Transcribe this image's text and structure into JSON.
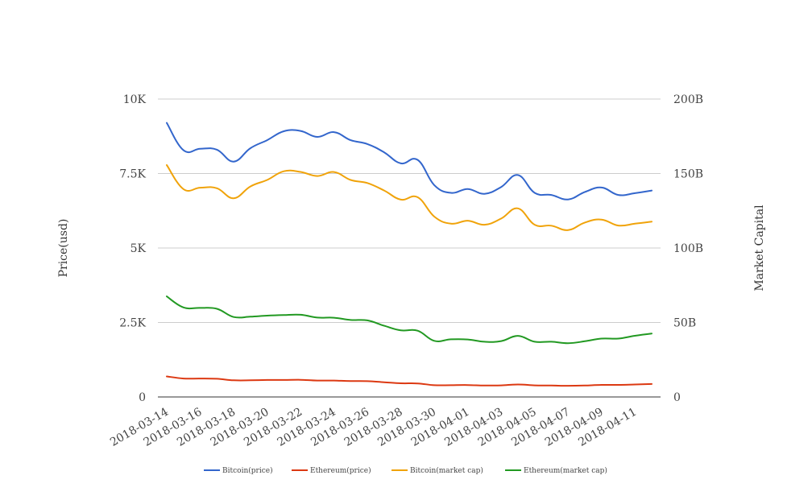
{
  "chart_data": {
    "type": "line",
    "x": [
      "2018-03-14",
      "2018-03-15",
      "2018-03-16",
      "2018-03-17",
      "2018-03-18",
      "2018-03-19",
      "2018-03-20",
      "2018-03-21",
      "2018-03-22",
      "2018-03-23",
      "2018-03-24",
      "2018-03-25",
      "2018-03-26",
      "2018-03-27",
      "2018-03-28",
      "2018-03-29",
      "2018-03-30",
      "2018-03-31",
      "2018-04-01",
      "2018-04-02",
      "2018-04-03",
      "2018-04-04",
      "2018-04-05",
      "2018-04-06",
      "2018-04-07",
      "2018-04-08",
      "2018-04-09",
      "2018-04-10",
      "2018-04-11",
      "2018-04-12"
    ],
    "x_tick_labels": [
      "2018-03-14",
      "2018-03-16",
      "2018-03-18",
      "2018-03-20",
      "2018-03-22",
      "2018-03-24",
      "2018-03-26",
      "2018-03-28",
      "2018-03-30",
      "2018-04-01",
      "2018-04-03",
      "2018-04-05",
      "2018-04-07",
      "2018-04-09",
      "2018-04-11"
    ],
    "y_left": {
      "title": "Price(usd)",
      "range": [
        0,
        10000
      ],
      "ticks": [
        0,
        2500,
        5000,
        7500,
        10000
      ],
      "tick_labels": [
        "0",
        "2.5K",
        "5K",
        "7.5K",
        "10K"
      ]
    },
    "y_right": {
      "title": "Market Capital",
      "range": [
        0,
        200
      ],
      "unit": "B",
      "ticks": [
        0,
        50,
        100,
        150,
        200
      ],
      "tick_labels": [
        "0",
        "50B",
        "100B",
        "150B",
        "200B"
      ]
    },
    "grid": true,
    "legend_position": "bottom",
    "series": [
      {
        "name": "Bitcoin(price)",
        "axis": "left",
        "color": "#3366cc",
        "values": [
          9200,
          8280,
          8330,
          8300,
          7900,
          8350,
          8620,
          8920,
          8930,
          8730,
          8890,
          8620,
          8490,
          8210,
          7840,
          7960,
          7110,
          6850,
          6980,
          6820,
          7050,
          7450,
          6850,
          6780,
          6630,
          6880,
          7030,
          6780,
          6840,
          6930
        ]
      },
      {
        "name": "Ethereum(price)",
        "axis": "left",
        "color": "#dc3912",
        "values": [
          690,
          620,
          620,
          610,
          560,
          560,
          570,
          570,
          575,
          550,
          550,
          535,
          530,
          495,
          460,
          455,
          395,
          395,
          400,
          385,
          390,
          420,
          390,
          385,
          375,
          385,
          405,
          405,
          420,
          435
        ]
      },
      {
        "name": "Bitcoin(market cap)",
        "axis": "right",
        "color": "#f0a30a",
        "values": [
          155.7,
          139.5,
          140.5,
          140.1,
          133.4,
          141.3,
          145.7,
          151.5,
          151.1,
          148.3,
          151.0,
          145.7,
          143.6,
          138.6,
          132.5,
          134.1,
          121.1,
          116.3,
          118.3,
          115.6,
          119.8,
          126.6,
          115.6,
          115.0,
          112.0,
          117.1,
          119.1,
          115.1,
          116.3,
          117.7
        ]
      },
      {
        "name": "Ethereum(market cap)",
        "axis": "right",
        "color": "#229922",
        "values": [
          67.5,
          60.1,
          59.8,
          59.2,
          53.7,
          53.9,
          54.6,
          55.0,
          55.2,
          53.3,
          53.2,
          51.7,
          51.4,
          47.8,
          44.7,
          44.5,
          37.7,
          38.7,
          38.6,
          37.1,
          37.5,
          41.0,
          37.1,
          37.1,
          36.1,
          37.4,
          39.2,
          39.2,
          41.1,
          42.6
        ]
      }
    ]
  }
}
